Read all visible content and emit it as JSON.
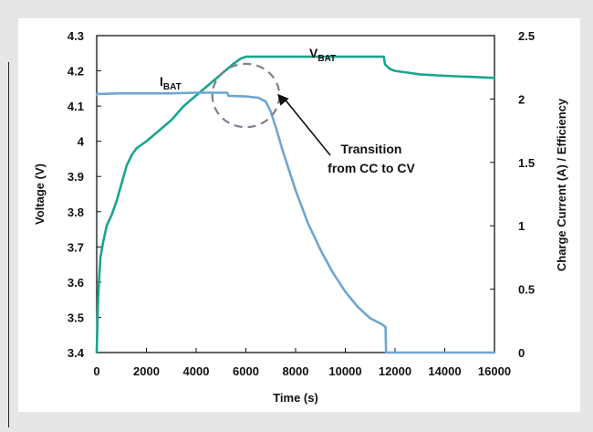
{
  "chart_data": {
    "type": "line",
    "xlabel": "Time (s)",
    "ylabel_left": "Voltage (V)",
    "ylabel_right": "Charge Current (A) / Efficiency",
    "xlim": [
      0,
      16000
    ],
    "ylim_left": [
      3.4,
      4.3
    ],
    "ylim_right": [
      0,
      2.5
    ],
    "x_ticks": [
      "0",
      "2000",
      "4000",
      "6000",
      "8000",
      "10000",
      "12000",
      "14000",
      "16000"
    ],
    "y_left_ticks": [
      "3.4",
      "3.5",
      "3.6",
      "3.7",
      "3.8",
      "3.9",
      "4",
      "4.1",
      "4.2",
      "4.3"
    ],
    "y_right_ticks": [
      "0",
      "0.5",
      "1",
      "1.5",
      "2",
      "2.5"
    ],
    "grid": "none",
    "colors": {
      "voltage": "#1aa58f",
      "current": "#6fa6cf",
      "circle": "#7a8090",
      "arrow": "#111111"
    },
    "series": [
      {
        "name": "V",
        "subscript": "BAT",
        "axis": "left",
        "x": [
          0,
          60,
          150,
          250,
          400,
          600,
          800,
          1000,
          1200,
          1400,
          1600,
          1800,
          2000,
          2500,
          3000,
          3500,
          4000,
          4500,
          5000,
          5500,
          5800,
          6000,
          6500,
          7000,
          8000,
          9000,
          10000,
          11000,
          11550,
          11600,
          11800,
          12000,
          12500,
          13000,
          14000,
          15000,
          16000
        ],
        "y": [
          3.4,
          3.56,
          3.67,
          3.71,
          3.76,
          3.79,
          3.83,
          3.88,
          3.93,
          3.96,
          3.98,
          3.99,
          4.0,
          4.03,
          4.06,
          4.1,
          4.13,
          4.16,
          4.19,
          4.22,
          4.235,
          4.24,
          4.24,
          4.24,
          4.24,
          4.24,
          4.24,
          4.24,
          4.24,
          4.218,
          4.205,
          4.2,
          4.195,
          4.19,
          4.186,
          4.183,
          4.18
        ]
      },
      {
        "name": "I",
        "subscript": "BAT",
        "axis": "right",
        "x": [
          0,
          20,
          200,
          1000,
          2000,
          3000,
          4000,
          5000,
          5250,
          5300,
          6000,
          6500,
          6800,
          7000,
          7200,
          7500,
          8000,
          8500,
          9000,
          9500,
          10000,
          10500,
          11000,
          11500,
          11620,
          11640,
          12000,
          13000,
          14000,
          15000,
          16000
        ],
        "y": [
          2.03,
          2.04,
          2.04,
          2.045,
          2.045,
          2.045,
          2.05,
          2.05,
          2.05,
          2.025,
          2.02,
          2.01,
          1.98,
          1.9,
          1.78,
          1.58,
          1.28,
          1.02,
          0.81,
          0.63,
          0.48,
          0.36,
          0.27,
          0.22,
          0.2,
          0.0,
          0.0,
          0.0,
          0.0,
          0.0,
          0.0
        ]
      }
    ],
    "annotations": [
      {
        "text_lines": [
          "Transition",
          "from CC to CV"
        ],
        "points_to": [
          7200,
          4.14
        ]
      }
    ],
    "highlight_circle": {
      "center": [
        6000,
        4.13
      ],
      "radius_x": 1350,
      "radius_y": 0.09
    }
  }
}
